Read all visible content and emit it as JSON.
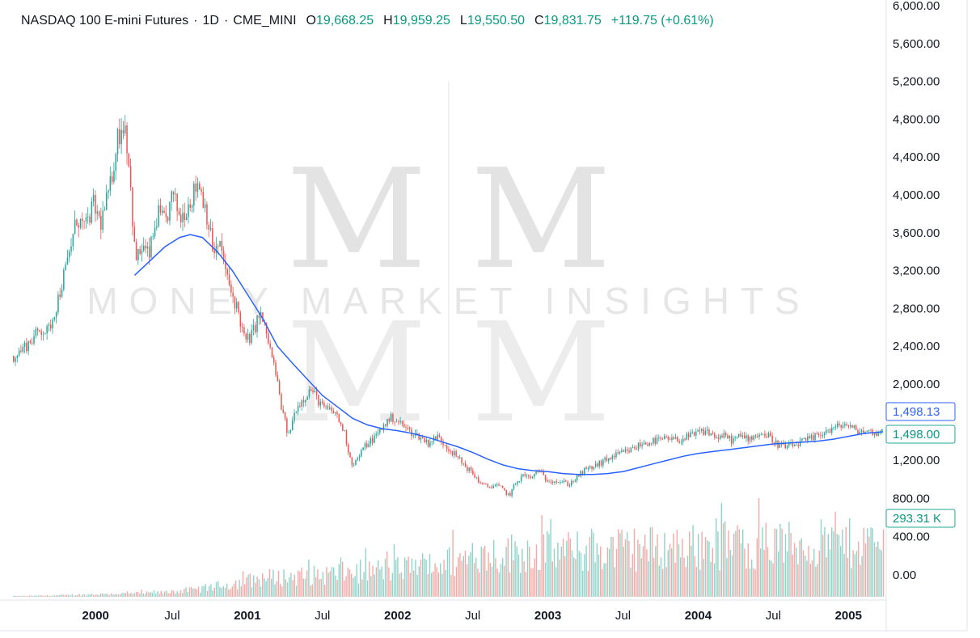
{
  "header": {
    "symbol": "NASDAQ 100 E-mini Futures",
    "interval": "1D",
    "exchange": "CME_MINI",
    "open_label": "O",
    "open": "19,668.25",
    "high_label": "H",
    "high": "19,959.25",
    "low_label": "L",
    "low": "19,550.50",
    "close_label": "C",
    "close": "19,831.75",
    "change": "+119.75 (+0.61%)"
  },
  "watermark": {
    "monogram": "M M",
    "text": "MONEY MARKET INSIGHTS"
  },
  "colors": {
    "up": "#26a69a",
    "down": "#ef5350",
    "ma": "#2962ff",
    "up_vol": "#8fd3c9",
    "down_vol": "#f5a9a6"
  },
  "badges": {
    "ma_value": "1,498.13",
    "last_price": "1,498.00",
    "volume": "293.31 K"
  },
  "chart_data": {
    "type": "candlestick",
    "title": "NASDAQ 100 E-mini Futures · 1D · CME_MINI",
    "y_ticks": [
      6000,
      5600,
      5200,
      4800,
      4400,
      4000,
      3600,
      3200,
      2800,
      2400,
      2000,
      1200,
      800,
      400,
      0
    ],
    "y_tick_labels": [
      "6,000.00",
      "5,600.00",
      "5,200.00",
      "4,800.00",
      "4,400.00",
      "4,000.00",
      "3,600.00",
      "3,200.00",
      "2,800.00",
      "2,400.00",
      "2,000.00",
      "1,200.00",
      "800.00",
      "400.00",
      "0.00"
    ],
    "x_ticks": [
      {
        "t": 1999.99,
        "label": "2000",
        "major": true
      },
      {
        "t": 2000.5,
        "label": "Jul",
        "major": false
      },
      {
        "t": 2001.0,
        "label": "2001",
        "major": true
      },
      {
        "t": 2001.5,
        "label": "Jul",
        "major": false
      },
      {
        "t": 2002.0,
        "label": "2002",
        "major": true
      },
      {
        "t": 2002.5,
        "label": "Jul",
        "major": false
      },
      {
        "t": 2003.0,
        "label": "2003",
        "major": true
      },
      {
        "t": 2003.5,
        "label": "Jul",
        "major": false
      },
      {
        "t": 2004.0,
        "label": "2004",
        "major": true
      },
      {
        "t": 2004.5,
        "label": "Jul",
        "major": false
      },
      {
        "t": 2005.0,
        "label": "2005",
        "major": true
      }
    ],
    "x_range": [
      1999.44,
      2005.23
    ],
    "price_path": [
      [
        1999.45,
        2300
      ],
      [
        1999.55,
        2450
      ],
      [
        1999.62,
        2580
      ],
      [
        1999.67,
        2550
      ],
      [
        1999.72,
        2800
      ],
      [
        1999.8,
        3300
      ],
      [
        1999.86,
        3750
      ],
      [
        1999.92,
        3650
      ],
      [
        1999.97,
        3900
      ],
      [
        2000.02,
        3700
      ],
      [
        2000.08,
        4050
      ],
      [
        2000.13,
        4600
      ],
      [
        2000.18,
        4780
      ],
      [
        2000.21,
        4300
      ],
      [
        2000.25,
        3300
      ],
      [
        2000.3,
        3450
      ],
      [
        2000.34,
        3350
      ],
      [
        2000.4,
        3800
      ],
      [
        2000.45,
        3700
      ],
      [
        2000.5,
        4000
      ],
      [
        2000.55,
        3750
      ],
      [
        2000.62,
        3950
      ],
      [
        2000.67,
        4150
      ],
      [
        2000.72,
        3850
      ],
      [
        2000.77,
        3400
      ],
      [
        2000.82,
        3450
      ],
      [
        2000.87,
        3050
      ],
      [
        2000.93,
        2800
      ],
      [
        2000.98,
        2450
      ],
      [
        2001.02,
        2500
      ],
      [
        2001.08,
        2750
      ],
      [
        2001.12,
        2550
      ],
      [
        2001.18,
        2150
      ],
      [
        2001.23,
        1700
      ],
      [
        2001.27,
        1450
      ],
      [
        2001.32,
        1750
      ],
      [
        2001.37,
        1850
      ],
      [
        2001.42,
        1950
      ],
      [
        2001.5,
        1750
      ],
      [
        2001.58,
        1700
      ],
      [
        2001.64,
        1500
      ],
      [
        2001.69,
        1160
      ],
      [
        2001.72,
        1190
      ],
      [
        2001.78,
        1350
      ],
      [
        2001.85,
        1450
      ],
      [
        2001.92,
        1600
      ],
      [
        2001.96,
        1650
      ],
      [
        2002.02,
        1580
      ],
      [
        2002.08,
        1500
      ],
      [
        2002.14,
        1450
      ],
      [
        2002.2,
        1380
      ],
      [
        2002.26,
        1450
      ],
      [
        2002.32,
        1350
      ],
      [
        2002.38,
        1250
      ],
      [
        2002.44,
        1150
      ],
      [
        2002.5,
        1050
      ],
      [
        2002.56,
        940
      ],
      [
        2002.6,
        920
      ],
      [
        2002.65,
        940
      ],
      [
        2002.69,
        900
      ],
      [
        2002.74,
        830
      ],
      [
        2002.79,
        980
      ],
      [
        2002.84,
        1050
      ],
      [
        2002.88,
        1000
      ],
      [
        2002.93,
        1100
      ],
      [
        2002.98,
        1000
      ],
      [
        2003.03,
        990
      ],
      [
        2003.09,
        970
      ],
      [
        2003.14,
        950
      ],
      [
        2003.19,
        1020
      ],
      [
        2003.24,
        1090
      ],
      [
        2003.3,
        1130
      ],
      [
        2003.36,
        1180
      ],
      [
        2003.42,
        1230
      ],
      [
        2003.48,
        1270
      ],
      [
        2003.54,
        1300
      ],
      [
        2003.62,
        1370
      ],
      [
        2003.7,
        1400
      ],
      [
        2003.78,
        1420
      ],
      [
        2003.86,
        1410
      ],
      [
        2003.94,
        1450
      ],
      [
        2004.02,
        1500
      ],
      [
        2004.06,
        1500
      ],
      [
        2004.12,
        1440
      ],
      [
        2004.18,
        1450
      ],
      [
        2004.22,
        1410
      ],
      [
        2004.28,
        1450
      ],
      [
        2004.34,
        1430
      ],
      [
        2004.4,
        1480
      ],
      [
        2004.46,
        1460
      ],
      [
        2004.52,
        1370
      ],
      [
        2004.58,
        1340
      ],
      [
        2004.64,
        1360
      ],
      [
        2004.7,
        1400
      ],
      [
        2004.76,
        1430
      ],
      [
        2004.82,
        1490
      ],
      [
        2004.88,
        1520
      ],
      [
        2004.94,
        1560
      ],
      [
        2004.98,
        1580
      ],
      [
        2005.02,
        1530
      ],
      [
        2005.06,
        1510
      ],
      [
        2005.12,
        1500
      ],
      [
        2005.18,
        1490
      ],
      [
        2005.23,
        1498
      ]
    ],
    "ma_path": [
      [
        2000.25,
        3150
      ],
      [
        2000.35,
        3300
      ],
      [
        2000.45,
        3450
      ],
      [
        2000.55,
        3550
      ],
      [
        2000.62,
        3580
      ],
      [
        2000.7,
        3550
      ],
      [
        2000.8,
        3400
      ],
      [
        2000.9,
        3200
      ],
      [
        2001.0,
        2950
      ],
      [
        2001.1,
        2700
      ],
      [
        2001.2,
        2400
      ],
      [
        2001.3,
        2220
      ],
      [
        2001.4,
        2050
      ],
      [
        2001.5,
        1880
      ],
      [
        2001.6,
        1760
      ],
      [
        2001.7,
        1640
      ],
      [
        2001.8,
        1570
      ],
      [
        2001.9,
        1530
      ],
      [
        2002.0,
        1510
      ],
      [
        2002.1,
        1480
      ],
      [
        2002.2,
        1440
      ],
      [
        2002.3,
        1390
      ],
      [
        2002.4,
        1340
      ],
      [
        2002.5,
        1280
      ],
      [
        2002.6,
        1210
      ],
      [
        2002.7,
        1150
      ],
      [
        2002.8,
        1110
      ],
      [
        2002.9,
        1090
      ],
      [
        2003.0,
        1080
      ],
      [
        2003.1,
        1060
      ],
      [
        2003.2,
        1050
      ],
      [
        2003.3,
        1050
      ],
      [
        2003.4,
        1060
      ],
      [
        2003.5,
        1080
      ],
      [
        2003.6,
        1120
      ],
      [
        2003.7,
        1160
      ],
      [
        2003.8,
        1200
      ],
      [
        2003.9,
        1240
      ],
      [
        2004.0,
        1270
      ],
      [
        2004.1,
        1290
      ],
      [
        2004.2,
        1310
      ],
      [
        2004.3,
        1330
      ],
      [
        2004.4,
        1350
      ],
      [
        2004.5,
        1370
      ],
      [
        2004.6,
        1380
      ],
      [
        2004.7,
        1390
      ],
      [
        2004.8,
        1400
      ],
      [
        2004.9,
        1420
      ],
      [
        2005.0,
        1450
      ],
      [
        2005.1,
        1480
      ],
      [
        2005.23,
        1498
      ]
    ],
    "volume_envelope": [
      [
        1999.45,
        10
      ],
      [
        1999.8,
        25
      ],
      [
        2000.0,
        40
      ],
      [
        2000.4,
        60
      ],
      [
        2000.65,
        110
      ],
      [
        2000.9,
        200
      ],
      [
        2001.1,
        290
      ],
      [
        2001.4,
        320
      ],
      [
        2001.7,
        380
      ],
      [
        2002.0,
        430
      ],
      [
        2002.3,
        520
      ],
      [
        2002.6,
        650
      ],
      [
        2002.9,
        700
      ],
      [
        2003.2,
        690
      ],
      [
        2003.5,
        740
      ],
      [
        2003.8,
        760
      ],
      [
        2004.1,
        780
      ],
      [
        2004.4,
        790
      ],
      [
        2004.7,
        800
      ],
      [
        2005.0,
        820
      ],
      [
        2005.23,
        810
      ]
    ]
  }
}
